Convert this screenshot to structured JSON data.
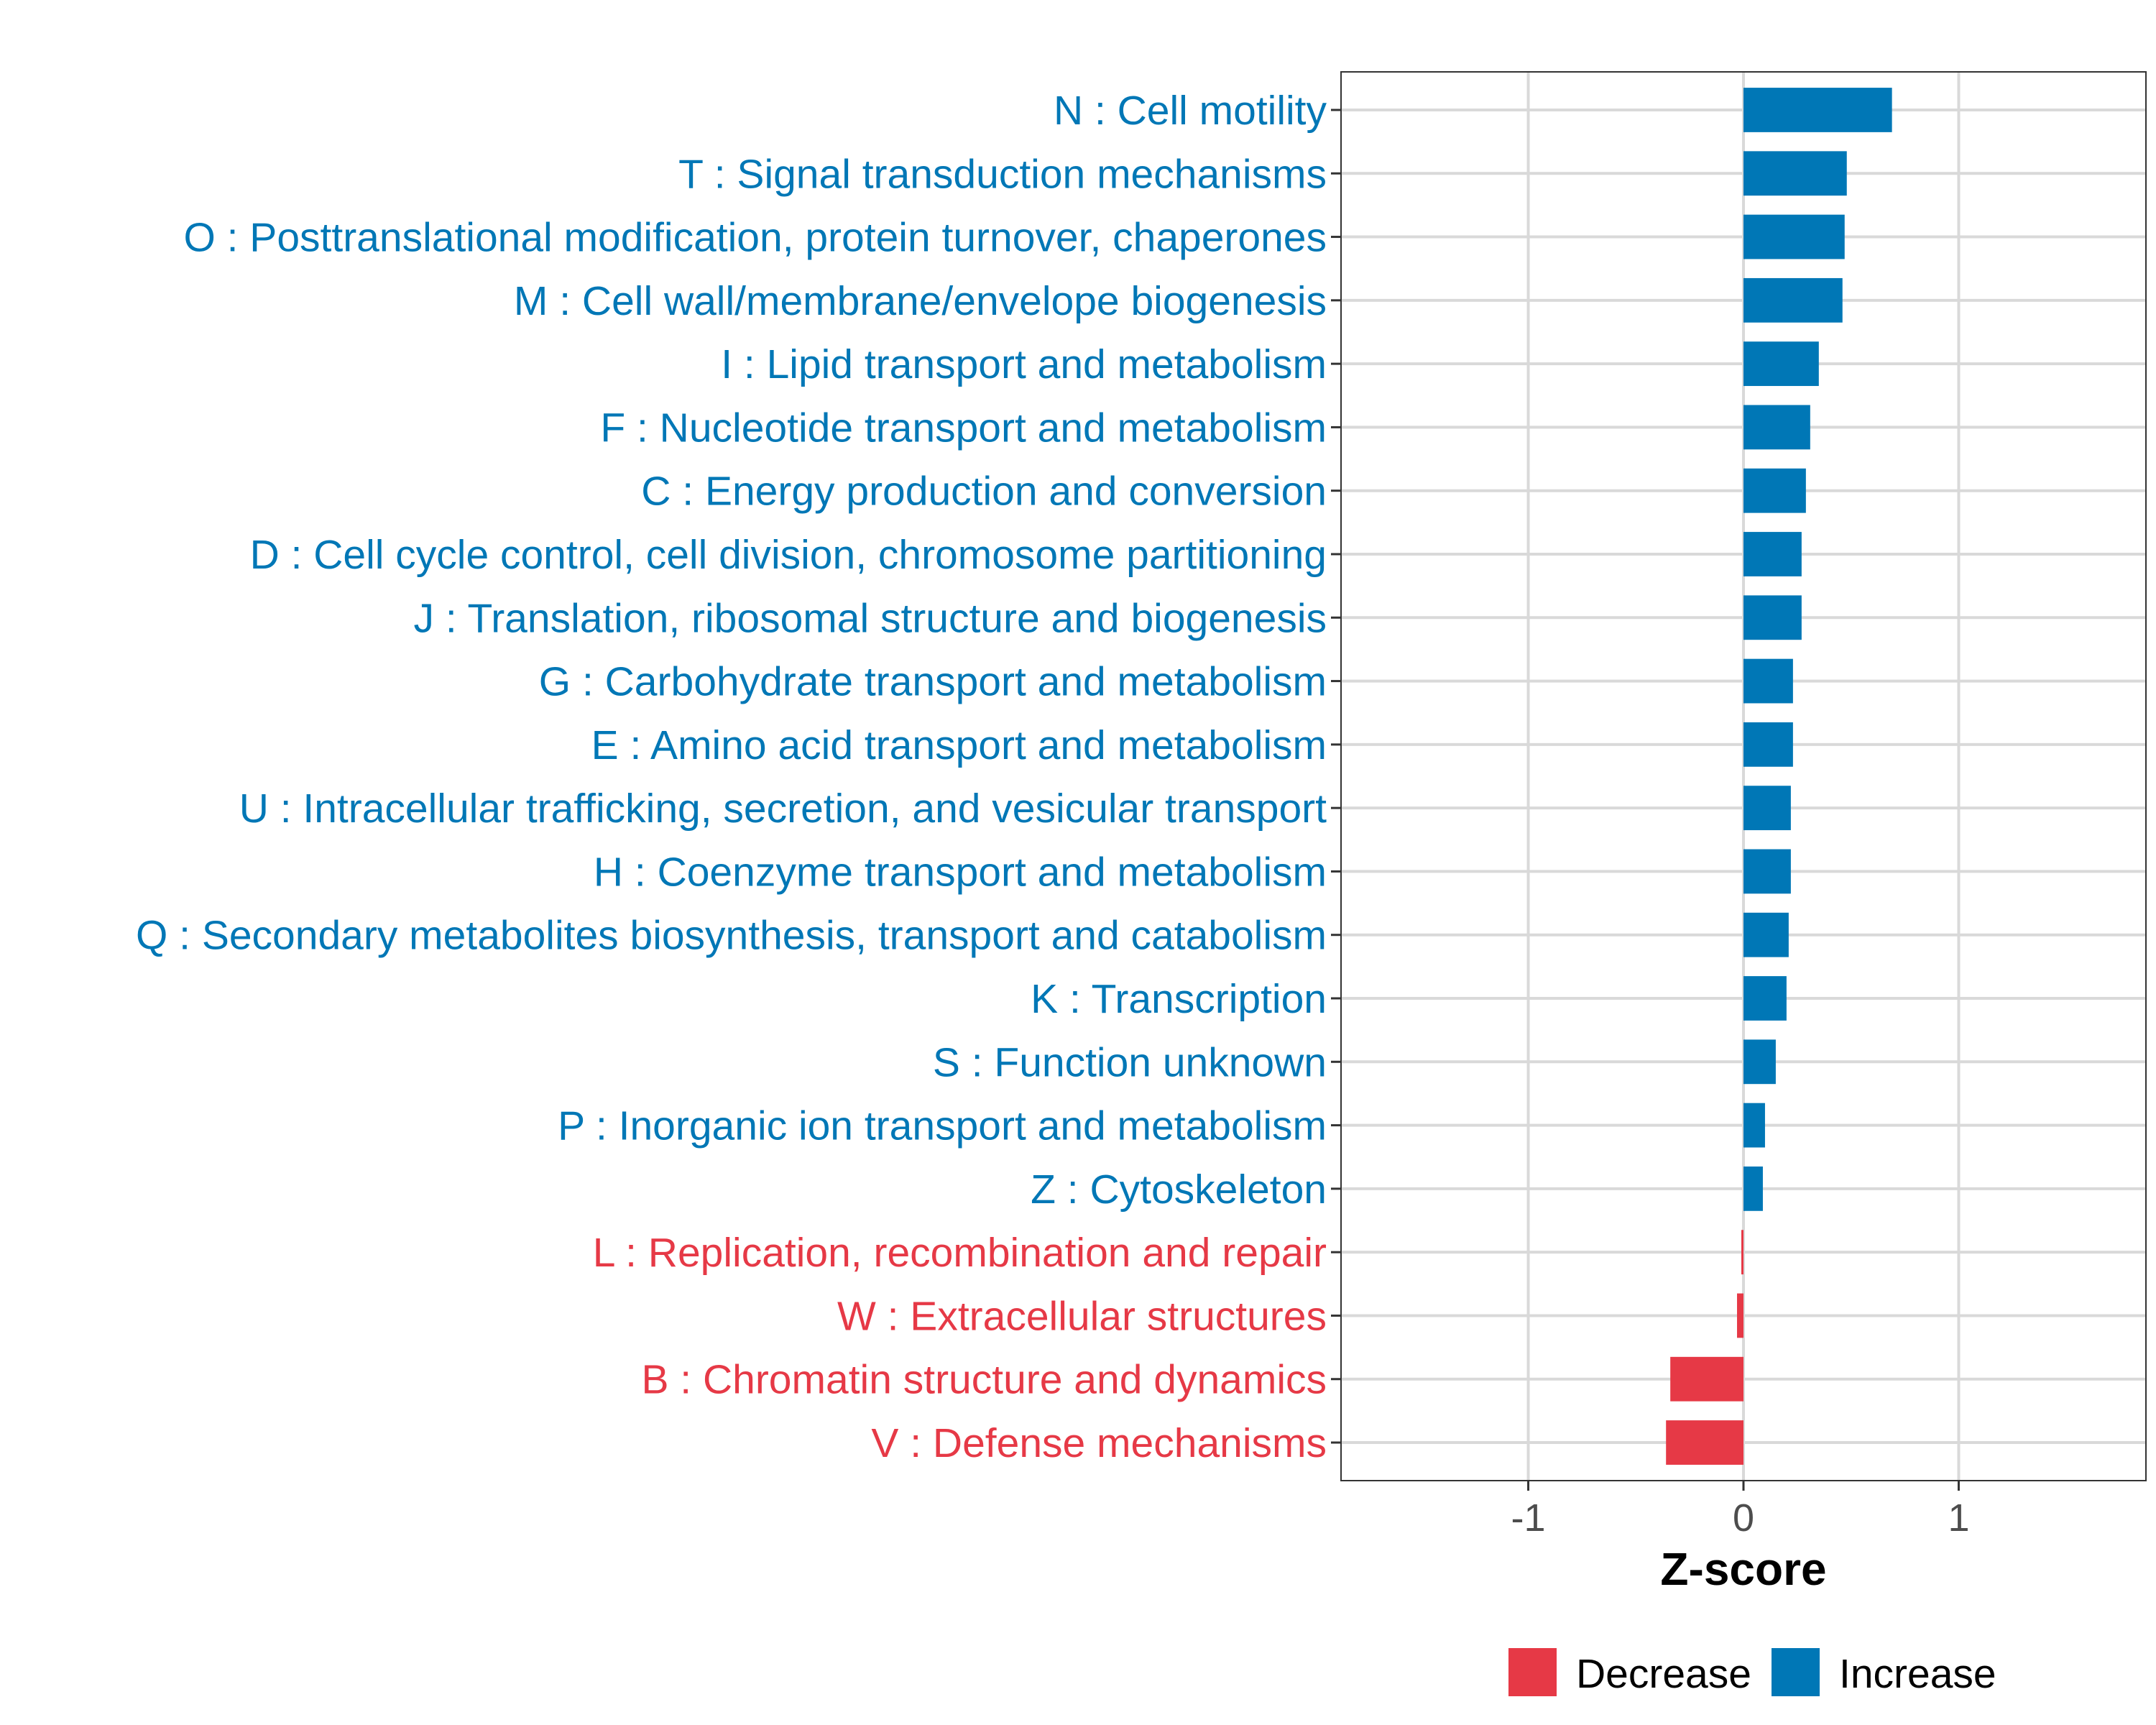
{
  "colors": {
    "increase": "#0077b6",
    "decrease": "#e63946",
    "grid": "#d9d9d9",
    "axis_text": "#4d4d4d"
  },
  "chart_data": {
    "type": "bar",
    "orientation": "horizontal",
    "title": "",
    "xlabel": "Z-score",
    "ylabel": "",
    "xlim": [
      -1.87,
      1.87
    ],
    "xticks": [
      -1,
      0,
      1
    ],
    "xtick_labels": [
      "-1",
      "0",
      "1"
    ],
    "grid": true,
    "legend": {
      "placement": "bottom",
      "entries": [
        "Decrease",
        "Increase"
      ]
    },
    "categories": [
      "N : Cell motility",
      "T : Signal transduction mechanisms",
      "O : Posttranslational modification, protein turnover, chaperones",
      "M : Cell wall/membrane/envelope biogenesis",
      "I : Lipid transport and metabolism",
      "F : Nucleotide transport and metabolism",
      "C : Energy production and conversion",
      "D : Cell cycle control, cell division, chromosome partitioning",
      "J : Translation, ribosomal structure and biogenesis",
      "G : Carbohydrate transport and metabolism",
      "E : Amino acid transport and metabolism",
      "U : Intracellular trafficking, secretion, and vesicular transport",
      "H : Coenzyme transport and metabolism",
      "Q : Secondary metabolites biosynthesis, transport and catabolism",
      "K : Transcription",
      "S : Function unknown",
      "P : Inorganic ion transport and metabolism",
      "Z : Cytoskeleton",
      "L : Replication, recombination and repair",
      "W : Extracellular structures",
      "B : Chromatin structure and dynamics",
      "V : Defense mechanisms"
    ],
    "values": [
      0.69,
      0.48,
      0.47,
      0.46,
      0.35,
      0.31,
      0.29,
      0.27,
      0.27,
      0.23,
      0.23,
      0.22,
      0.22,
      0.21,
      0.2,
      0.15,
      0.1,
      0.09,
      -0.01,
      -0.03,
      -0.34,
      -0.36
    ]
  }
}
